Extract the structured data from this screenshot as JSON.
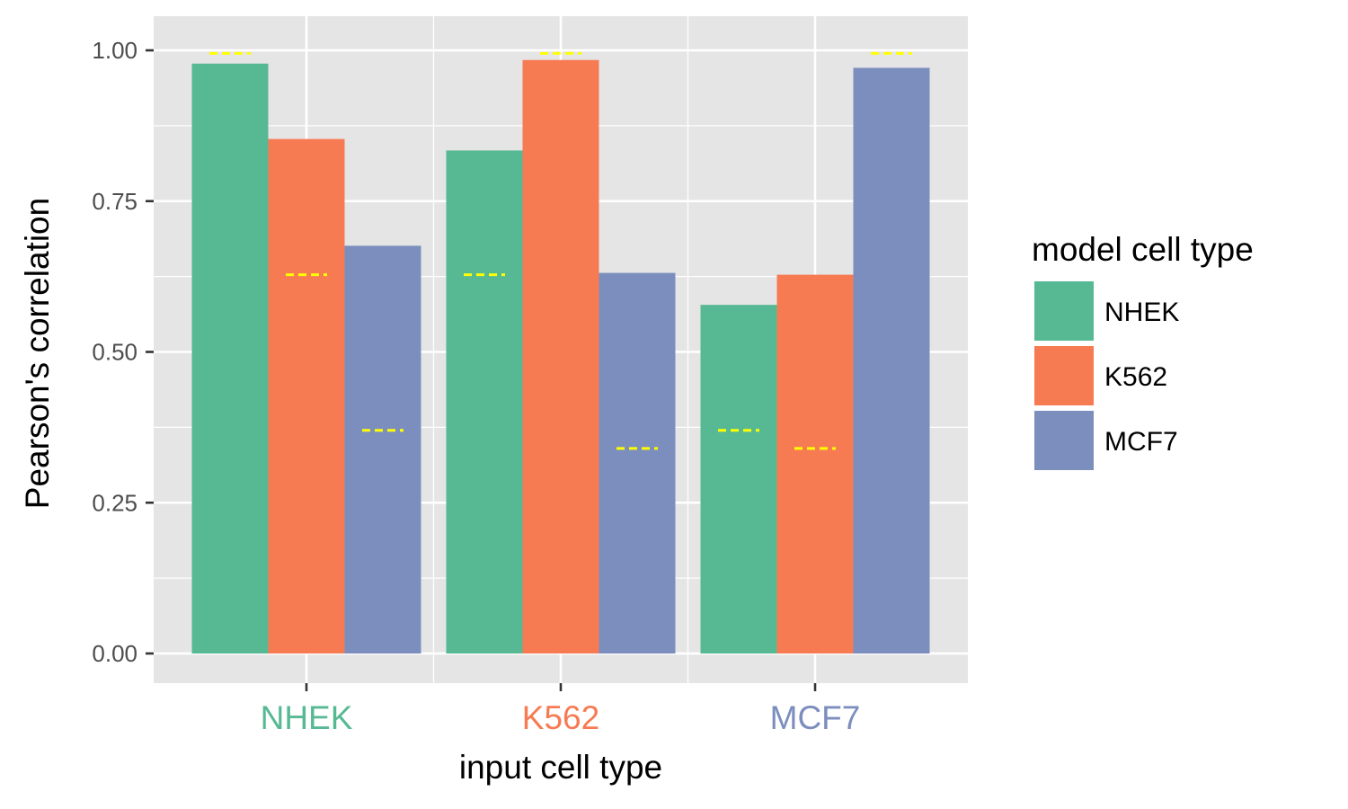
{
  "chart_data": {
    "type": "bar",
    "xlabel": "input cell type",
    "ylabel": "Pearson's correlation",
    "categories": [
      "NHEK",
      "K562",
      "MCF7"
    ],
    "category_colors": [
      "#57b994",
      "#f77b52",
      "#7c8ebe"
    ],
    "ylim": [
      -0.05,
      1.05
    ],
    "yticks": [
      0.0,
      0.25,
      0.5,
      0.75,
      1.0
    ],
    "ytick_labels": [
      "0.00",
      "0.25",
      "0.50",
      "0.75",
      "1.00"
    ],
    "grid": true,
    "panel_background": "#e5e5e5",
    "legend": {
      "title": "model cell type",
      "position": "right"
    },
    "series": [
      {
        "name": "NHEK",
        "color": "#57b994",
        "values": [
          0.978,
          0.834,
          0.578
        ]
      },
      {
        "name": "K562",
        "color": "#f77b52",
        "values": [
          0.853,
          0.984,
          0.628
        ]
      },
      {
        "name": "MCF7",
        "color": "#7c8ebe",
        "values": [
          0.676,
          0.631,
          0.971
        ]
      }
    ],
    "baseline_markers": {
      "color": "#ffff00",
      "style": "dashed",
      "values": [
        [
          0.995,
          0.628,
          0.37
        ],
        [
          0.628,
          0.995,
          0.34
        ],
        [
          0.37,
          0.34,
          0.995
        ]
      ]
    }
  }
}
